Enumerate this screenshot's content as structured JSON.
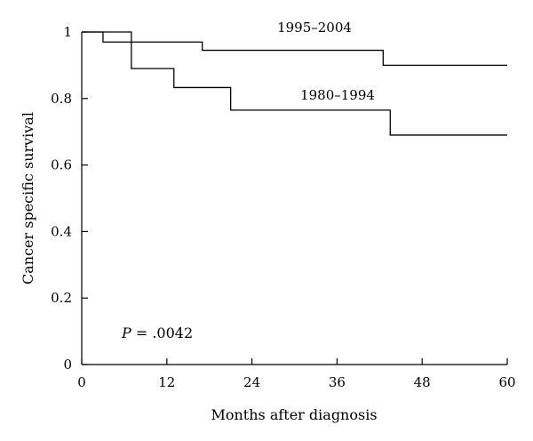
{
  "chart_data": {
    "type": "line",
    "step": true,
    "xlabel": "Months after diagnosis",
    "ylabel": "Cancer specific survival",
    "xlim": [
      0,
      60
    ],
    "ylim": [
      0,
      1
    ],
    "xticks": [
      0,
      12,
      24,
      36,
      48,
      60
    ],
    "yticks": [
      0,
      0.2,
      0.4,
      0.6,
      0.8,
      1
    ],
    "ytick_labels": [
      "0",
      "0.2",
      "0.4",
      "0.6",
      "0.8",
      "1"
    ],
    "grid": false,
    "series": [
      {
        "name": "1995–2004",
        "x": [
          0,
          3,
          17,
          42.5,
          60
        ],
        "y": [
          1,
          0.97,
          0.945,
          0.9,
          0.9
        ]
      },
      {
        "name": "1980–1994",
        "x": [
          0,
          7,
          13,
          21,
          43.5,
          60
        ],
        "y": [
          1,
          0.89,
          0.833,
          0.765,
          0.69,
          0.69
        ]
      }
    ],
    "annotations": [
      {
        "italic": "P",
        "text": " = .0042"
      }
    ]
  }
}
